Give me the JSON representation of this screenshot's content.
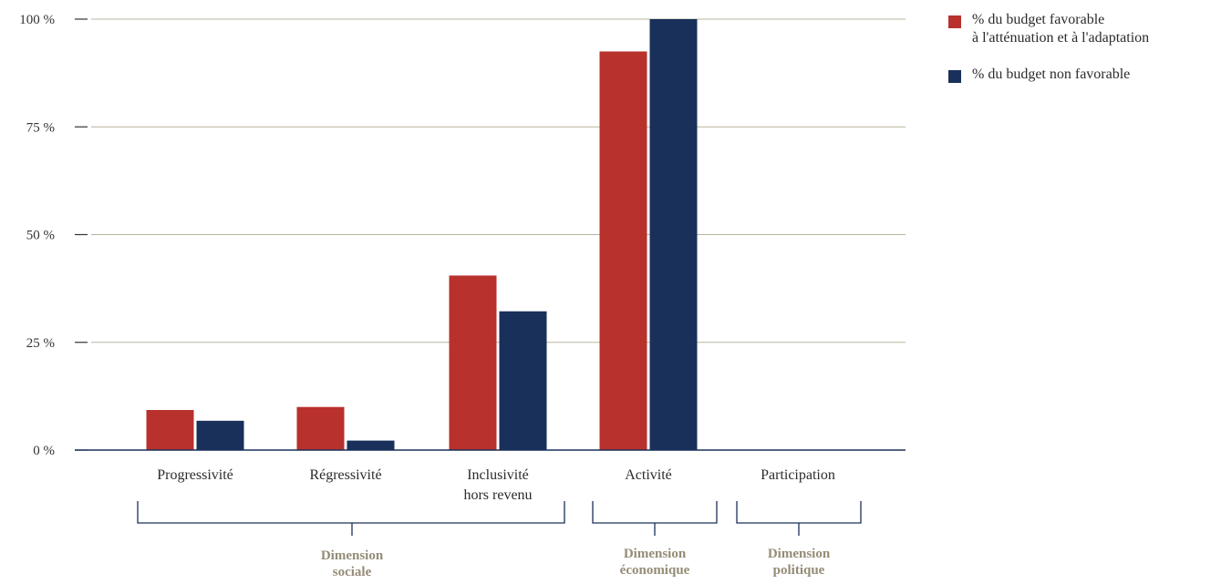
{
  "chart_data": {
    "type": "bar",
    "categories": [
      "Progressivité",
      "Régressivité",
      "Inclusivité\nhors revenu",
      "Activité",
      "Participation"
    ],
    "series": [
      {
        "name": "% du budget favorable\nà l'atténuation et à l'adaptation",
        "color": "#b8312c",
        "values": [
          9.3,
          10,
          40.5,
          92.5,
          0
        ]
      },
      {
        "name": "% du budget non favorable",
        "color": "#19305a",
        "values": [
          6.8,
          2.2,
          32.2,
          100,
          0
        ]
      }
    ],
    "yticks": [
      {
        "value": 0,
        "label": "0 %"
      },
      {
        "value": 25,
        "label": "25 %"
      },
      {
        "value": 50,
        "label": "50 %"
      },
      {
        "value": 75,
        "label": "75 %"
      },
      {
        "value": 100,
        "label": "100 %"
      }
    ],
    "ylim": [
      0,
      100
    ],
    "groups": [
      {
        "label": "Dimension\nsociale",
        "categories": [
          "Progressivité",
          "Régressivité",
          "Inclusivité\nhors revenu"
        ]
      },
      {
        "label": "Dimension\néconomique",
        "categories": [
          "Activité"
        ]
      },
      {
        "label": "Dimension\npolitique",
        "categories": [
          "Participation"
        ]
      }
    ],
    "grid": true,
    "legend": "top-right",
    "gridline_color": "#b9b49e",
    "axis_color": "#19305a",
    "group_label_color": "#948c76"
  }
}
